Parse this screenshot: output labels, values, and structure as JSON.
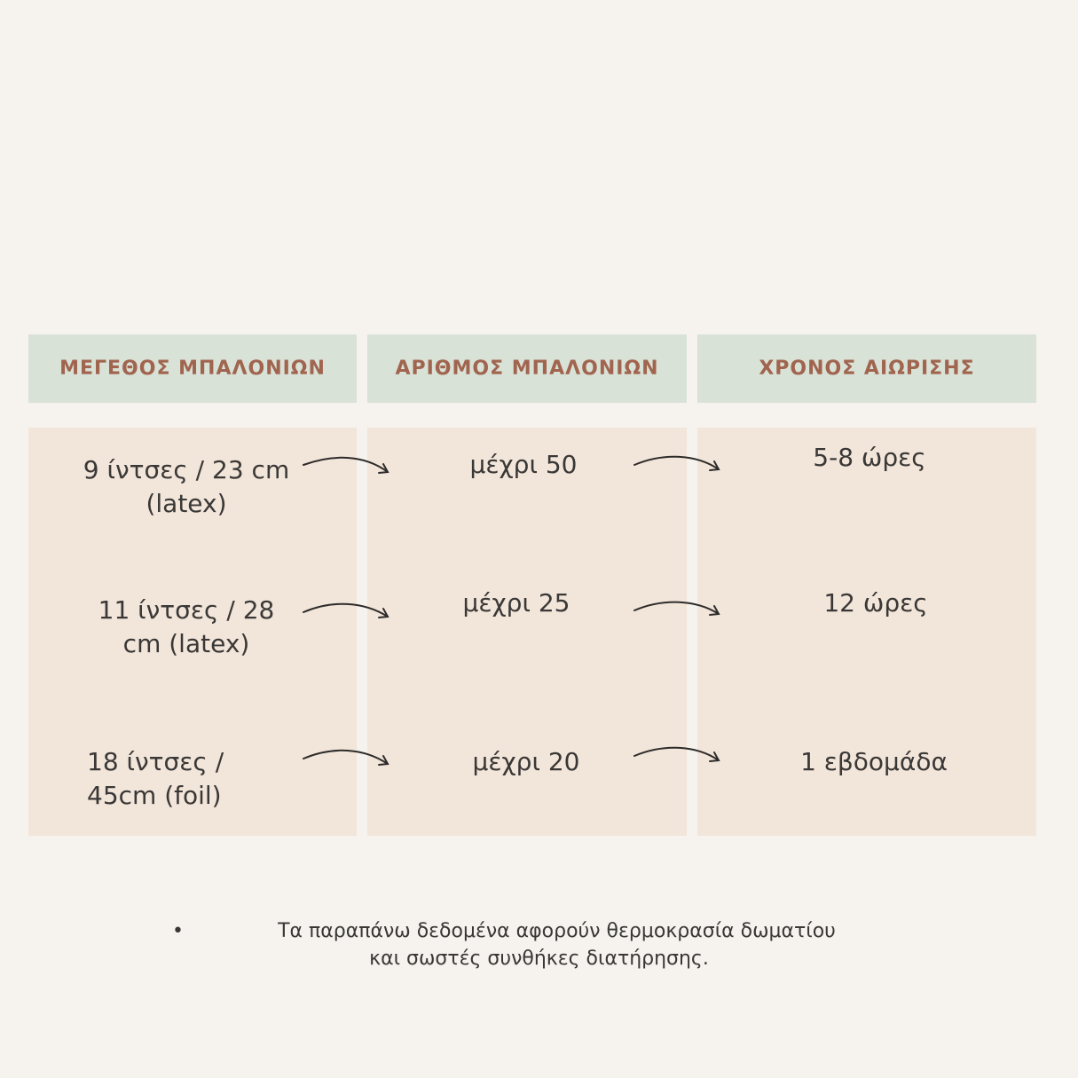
{
  "colors": {
    "background": "#f6f3ee",
    "header_bg": "#d9e2d7",
    "header_text": "#a0644f",
    "cell_bg": "#f2e5da",
    "text": "#3a3836"
  },
  "headers": [
    "ΜΕΓΕΘΟΣ ΜΠΑΛΟΝΙΩΝ",
    "ΑΡΙΘΜΟΣ ΜΠΑΛΟΝΙΩΝ",
    "ΧΡΟΝΟΣ ΑΙΩΡΙΣΗΣ"
  ],
  "rows": [
    {
      "size_line1": "9 ίντσες / 23 cm",
      "size_line2": "(latex)",
      "count": "μέχρι 50",
      "duration": "5-8 ώρες"
    },
    {
      "size_line1": "11 ίντσες /  28",
      "size_line2": "cm (latex)",
      "count": "μέχρι 25",
      "duration": "12 ώρες"
    },
    {
      "size_line1": "18 ίντσες /",
      "size_line2": "45cm (foil)",
      "count": "μέχρι 20",
      "duration": "1 εβδομάδα"
    }
  ],
  "arrow_icon": "curved-arrow-right",
  "note": {
    "line1": "Τα παραπάνω δεδομένα αφορούν θερμοκρασία δωματίου",
    "line2": "και σωστές συνθήκες διατήρησης."
  }
}
